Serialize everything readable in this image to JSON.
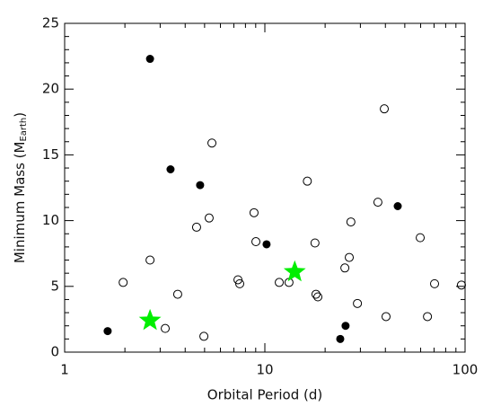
{
  "chart_data": {
    "type": "scatter",
    "xlabel": "Orbital Period (d)",
    "ylabel": [
      "Minimum Mass (M",
      "Earth",
      ")"
    ],
    "xscale": "log",
    "xlim": [
      1,
      100
    ],
    "xticks": [
      1,
      10,
      100
    ],
    "xminorticks": [
      2,
      3,
      4,
      5,
      6,
      7,
      8,
      9,
      20,
      30,
      40,
      50,
      60,
      70,
      80,
      90
    ],
    "ylim": [
      0,
      25
    ],
    "yticks": [
      0,
      5,
      10,
      15,
      20,
      25
    ],
    "yminorticks": [
      1,
      2,
      3,
      4,
      6,
      7,
      8,
      9,
      11,
      12,
      13,
      14,
      16,
      17,
      18,
      19,
      21,
      22,
      23,
      24
    ],
    "series": [
      {
        "marker": "filled-circle",
        "color": "#000000",
        "x": [
          2.67,
          3.38,
          4.75,
          10.2,
          46.1,
          1.64,
          25.3,
          23.8
        ],
        "y": [
          22.3,
          13.9,
          12.7,
          8.2,
          11.1,
          1.6,
          2.0,
          1.0
        ]
      },
      {
        "marker": "open-circle",
        "color": "#000000",
        "x": [
          1.96,
          2.67,
          3.18,
          3.67,
          4.56,
          4.96,
          5.27,
          5.44,
          7.34,
          7.49,
          8.83,
          9.02,
          11.8,
          13.2,
          16.3,
          17.8,
          18.0,
          18.4,
          25.1,
          26.4,
          26.9,
          29.0,
          36.7,
          39.5,
          40.3,
          59.7,
          64.9,
          70.4,
          95.9
        ],
        "y": [
          5.3,
          7.0,
          1.8,
          4.4,
          9.5,
          1.2,
          10.2,
          15.9,
          5.5,
          5.2,
          10.6,
          8.4,
          5.3,
          5.3,
          13.0,
          8.3,
          4.4,
          4.2,
          6.4,
          7.2,
          9.9,
          3.7,
          11.4,
          18.5,
          2.7,
          8.7,
          2.7,
          5.2,
          5.1
        ]
      },
      {
        "marker": "star",
        "color": "#00ee00",
        "x": [
          2.67,
          14.1
        ],
        "y": [
          2.4,
          6.1
        ]
      }
    ]
  }
}
